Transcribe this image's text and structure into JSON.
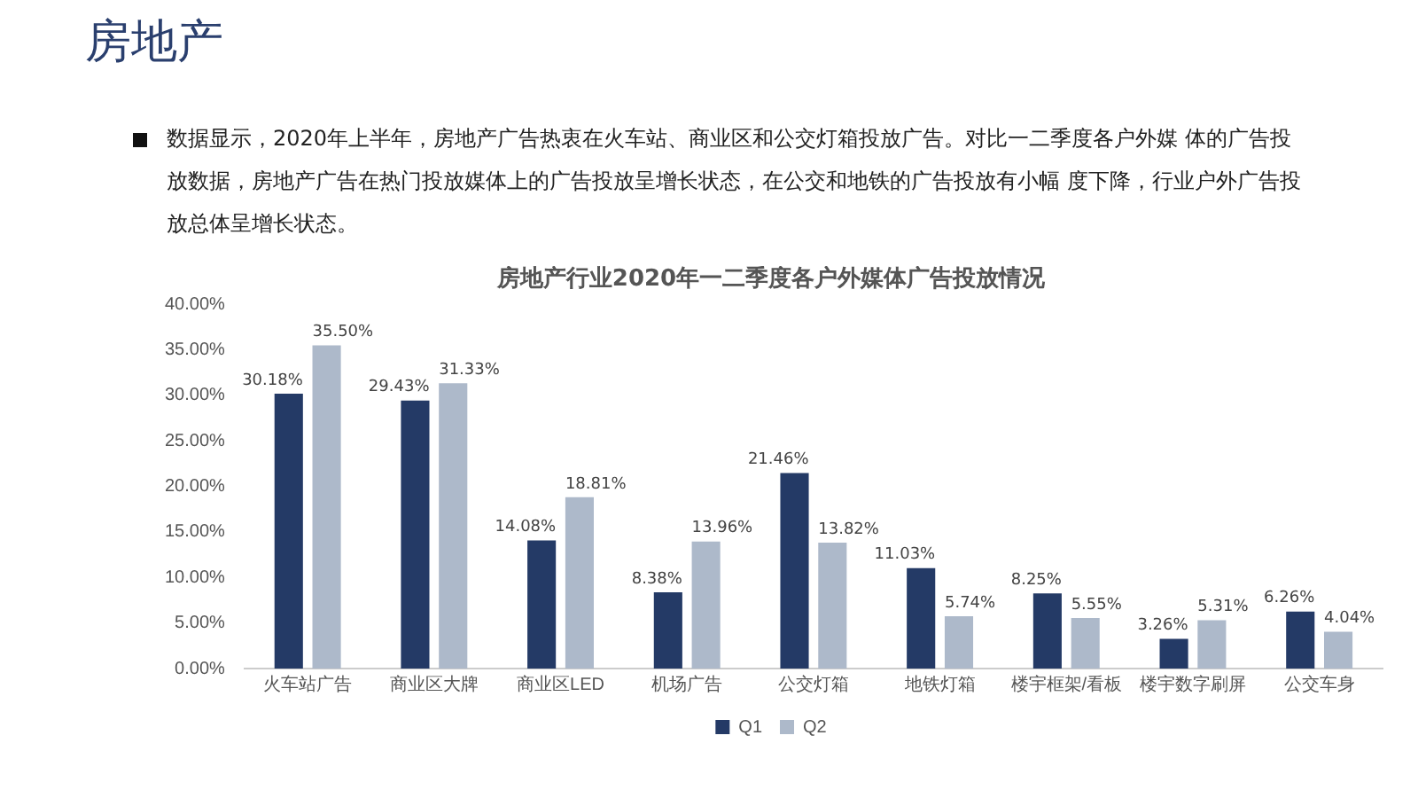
{
  "chart_data": {
    "type": "bar",
    "title": "房地产行业2020年一二季度各户外媒体广告投放情况",
    "annotations": [
      "房地产",
      "数据显示，2020年上半年，房地产广告热衷在火车站、商业区和公交灯箱投放广告。对比一二季度各户外媒 体的广告投放数据，房地产广告在热门投放媒体上的广告投放呈增长状态，在公交和地铁的广告投放有小幅 度下降，行业户外广告投放总体呈增长状态。"
    ],
    "categories": [
      "火车站广告",
      "商业区大牌",
      "商业区LED",
      "机场广告",
      "公交灯箱",
      "地铁灯箱",
      "楼宇框架/看板",
      "楼宇数字刷屏",
      "公交车身"
    ],
    "series": [
      {
        "name": "Q1",
        "color": "#243a66",
        "values": [
          30.18,
          29.43,
          14.08,
          8.38,
          21.46,
          11.03,
          8.25,
          3.26,
          6.26
        ],
        "value_labels": [
          "30.18%",
          "29.43%",
          "14.08%",
          "8.38%",
          "21.46%",
          "11.03%",
          "8.25%",
          "3.26%",
          "6.26%"
        ]
      },
      {
        "name": "Q2",
        "color": "#adb9ca",
        "values": [
          35.5,
          31.33,
          18.81,
          13.96,
          13.82,
          5.74,
          5.55,
          5.31,
          4.04
        ],
        "value_labels": [
          "35.50%",
          "31.33%",
          "18.81%",
          "13.96%",
          "13.82%",
          "5.74%",
          "5.55%",
          "5.31%",
          "4.04%"
        ]
      }
    ],
    "ylim": [
      0,
      40
    ],
    "yticks": [
      {
        "value": 0,
        "label": "0.00%"
      },
      {
        "value": 5,
        "label": "5.00%"
      },
      {
        "value": 10,
        "label": "10.00%"
      },
      {
        "value": 15,
        "label": "15.00%"
      },
      {
        "value": 20,
        "label": "20.00%"
      },
      {
        "value": 25,
        "label": "25.00%"
      },
      {
        "value": 30,
        "label": "30.00%"
      },
      {
        "value": 35,
        "label": "35.00%"
      },
      {
        "value": 40,
        "label": "40.00%"
      }
    ],
    "grid": false,
    "legend": "bottom"
  }
}
